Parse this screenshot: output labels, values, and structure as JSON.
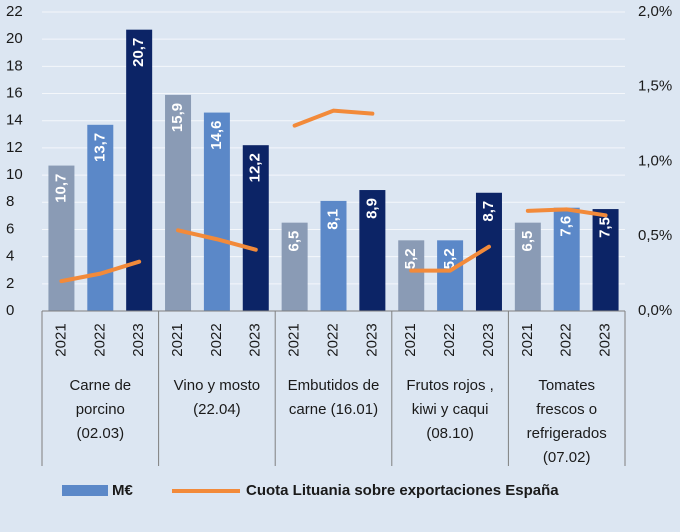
{
  "chart_data": {
    "type": "bar",
    "categories": [
      "2021",
      "2022",
      "2023",
      "2021",
      "2022",
      "2023",
      "2021",
      "2022",
      "2023",
      "2021",
      "2022",
      "2023",
      "2021",
      "2022",
      "2023"
    ],
    "groups": [
      [
        "Carne de",
        "porcino",
        "(02.03)"
      ],
      [
        "Vino y mosto",
        "(22.04)"
      ],
      [
        "Embutidos de",
        "carne (16.01)"
      ],
      [
        "Frutos rojos ,",
        "kiwi  y caqui",
        "(08.10)"
      ],
      [
        "Tomates",
        "frescos o",
        "refrigerados",
        "(07.02)"
      ]
    ],
    "series": [
      {
        "name": "M€",
        "color": "#5b88c8",
        "colors": [
          "#8a9bb5",
          "#5b88c8",
          "#0c2466"
        ],
        "values": [
          10.7,
          13.7,
          20.7,
          15.9,
          14.6,
          12.2,
          6.5,
          8.1,
          8.9,
          5.2,
          5.2,
          8.7,
          6.5,
          7.6,
          7.5
        ],
        "value_labels": [
          "10,7",
          "13,7",
          "20,7",
          "15,9",
          "14,6",
          "12,2",
          "6,5",
          "8,1",
          "8,9",
          "5,2",
          "5,2",
          "8,7",
          "6,5",
          "7,6",
          "7,5"
        ]
      },
      {
        "name": "Cuota Lituania sobre exportaciones España",
        "type": "line",
        "axis": "y2",
        "color": "#f28a3a",
        "values": [
          0.2,
          0.25,
          0.33,
          0.54,
          0.48,
          0.41,
          1.24,
          1.34,
          1.32,
          0.27,
          0.27,
          0.43,
          0.67,
          0.68,
          0.64
        ]
      }
    ],
    "ylim": [
      0,
      22
    ],
    "yticks": [
      0,
      2,
      4,
      6,
      8,
      10,
      12,
      14,
      16,
      18,
      20,
      22
    ],
    "y2lim": [
      0,
      2.0
    ],
    "y2ticks": [
      {
        "value": 0,
        "label": "0,0%"
      },
      {
        "value": 0.5,
        "label": "0,5%"
      },
      {
        "value": 1.0,
        "label": "1,0%"
      },
      {
        "value": 1.5,
        "label": "1,5%"
      },
      {
        "value": 2.0,
        "label": "2,0%"
      }
    ],
    "grid": true
  }
}
